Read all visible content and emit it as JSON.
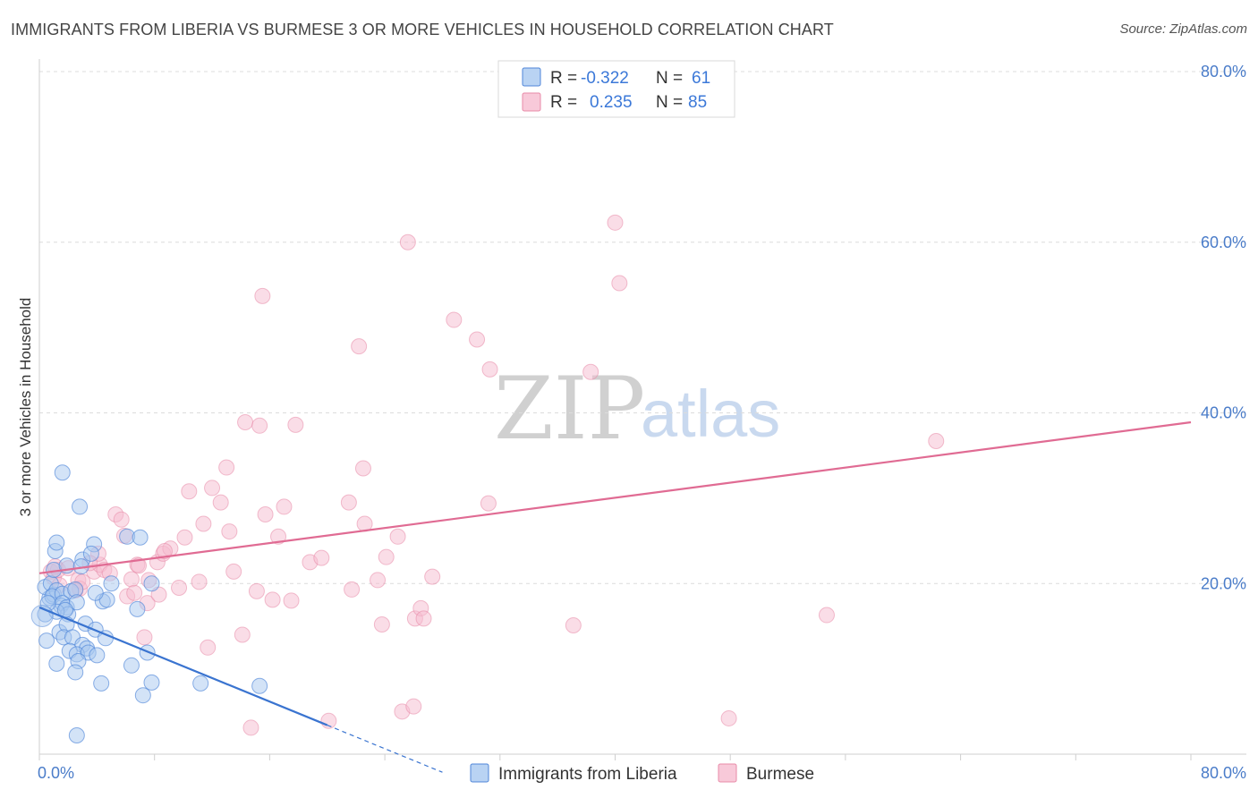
{
  "title": "IMMIGRANTS FROM LIBERIA VS BURMESE 3 OR MORE VEHICLES IN HOUSEHOLD CORRELATION CHART",
  "source": "Source: ZipAtlas.com",
  "watermark": {
    "zip": "ZIP",
    "atlas": "atlas"
  },
  "colors": {
    "liberia_fill": "#a8c8f0",
    "liberia_stroke": "#4f86d8",
    "liberia_line": "#3a74d0",
    "burmese_fill": "#f6bcd0",
    "burmese_stroke": "#e88aa8",
    "burmese_line": "#e06b93",
    "tick_text": "#4a7cc9"
  },
  "legend": {
    "r_label": "R =",
    "n_label": "N =",
    "rows": [
      {
        "r": "-0.322",
        "n": "61"
      },
      {
        "r": "0.235",
        "n": "85"
      }
    ]
  },
  "chart_data": {
    "type": "scatter",
    "title": "IMMIGRANTS FROM LIBERIA VS BURMESE 3 OR MORE VEHICLES IN HOUSEHOLD CORRELATION CHART",
    "xlabel": "",
    "ylabel": "3 or more Vehicles in Household",
    "xlim": [
      0,
      80
    ],
    "ylim": [
      0,
      80
    ],
    "x_tick_labels": [
      "0.0%",
      "80.0%"
    ],
    "y_tick_labels": [
      {
        "value": 20,
        "label": "20.0%"
      },
      {
        "value": 40,
        "label": "40.0%"
      },
      {
        "value": 60,
        "label": "60.0%"
      },
      {
        "value": 80,
        "label": "80.0%"
      }
    ],
    "grid": true,
    "series": [
      {
        "name": "Immigrants from Liberia",
        "r": -0.322,
        "n": 61,
        "trend": {
          "x0": 0,
          "y0": 17.2,
          "x1": 20,
          "y1": 3.4,
          "dash_to_x": 28
        },
        "points": [
          [
            0.4,
            16.4
          ],
          [
            0.7,
            18.3
          ],
          [
            0.4,
            19.6
          ],
          [
            1.0,
            18.7
          ],
          [
            0.8,
            20.0
          ],
          [
            1.2,
            19.2
          ],
          [
            0.9,
            18.5
          ],
          [
            1.6,
            18.8
          ],
          [
            2.2,
            19.1
          ],
          [
            2.5,
            19.3
          ],
          [
            1.0,
            21.6
          ],
          [
            1.1,
            23.8
          ],
          [
            1.2,
            24.8
          ],
          [
            1.9,
            22.1
          ],
          [
            2.8,
            29.0
          ],
          [
            3.0,
            22.8
          ],
          [
            3.8,
            24.6
          ],
          [
            3.6,
            23.5
          ],
          [
            1.5,
            17.4
          ],
          [
            1.6,
            17.7
          ],
          [
            1.9,
            17.2
          ],
          [
            2.0,
            16.4
          ],
          [
            1.2,
            16.7
          ],
          [
            0.5,
            13.3
          ],
          [
            1.4,
            14.3
          ],
          [
            1.9,
            15.2
          ],
          [
            1.7,
            13.7
          ],
          [
            2.3,
            13.7
          ],
          [
            3.2,
            15.3
          ],
          [
            3.9,
            14.6
          ],
          [
            3.0,
            12.8
          ],
          [
            3.3,
            12.4
          ],
          [
            4.6,
            13.6
          ],
          [
            2.1,
            12.1
          ],
          [
            2.6,
            11.7
          ],
          [
            3.4,
            11.9
          ],
          [
            4.0,
            11.6
          ],
          [
            2.7,
            10.9
          ],
          [
            1.2,
            10.6
          ],
          [
            2.5,
            9.6
          ],
          [
            6.4,
            10.4
          ],
          [
            7.5,
            11.9
          ],
          [
            4.3,
            8.3
          ],
          [
            7.2,
            6.9
          ],
          [
            7.8,
            8.4
          ],
          [
            11.2,
            8.3
          ],
          [
            15.3,
            8.0
          ],
          [
            6.8,
            17.0
          ],
          [
            4.4,
            17.9
          ],
          [
            4.7,
            18.1
          ],
          [
            5.0,
            20.0
          ],
          [
            7.8,
            20.0
          ],
          [
            6.1,
            25.5
          ],
          [
            7.0,
            25.4
          ],
          [
            1.6,
            33.0
          ],
          [
            2.6,
            2.2
          ],
          [
            2.9,
            22.0
          ],
          [
            2.6,
            17.8
          ],
          [
            0.6,
            17.7
          ],
          [
            3.9,
            18.9
          ],
          [
            1.8,
            16.9
          ]
        ]
      },
      {
        "name": "Burmese",
        "r": 0.235,
        "n": 85,
        "trend": {
          "x0": 0,
          "y0": 21.2,
          "x1": 80,
          "y1": 38.9
        },
        "points": [
          [
            0.8,
            21.4
          ],
          [
            1.0,
            20.7
          ],
          [
            1.3,
            21.6
          ],
          [
            1.1,
            22.0
          ],
          [
            2.0,
            21.8
          ],
          [
            2.7,
            20.4
          ],
          [
            2.8,
            19.4
          ],
          [
            3.0,
            20.2
          ],
          [
            3.8,
            21.4
          ],
          [
            4.2,
            22.2
          ],
          [
            4.5,
            21.6
          ],
          [
            4.1,
            23.5
          ],
          [
            5.3,
            28.1
          ],
          [
            5.7,
            27.5
          ],
          [
            5.9,
            25.6
          ],
          [
            6.4,
            20.5
          ],
          [
            6.1,
            18.5
          ],
          [
            6.6,
            18.9
          ],
          [
            6.8,
            22.2
          ],
          [
            6.9,
            22.1
          ],
          [
            7.5,
            17.7
          ],
          [
            7.6,
            20.4
          ],
          [
            8.3,
            18.7
          ],
          [
            8.2,
            22.5
          ],
          [
            8.6,
            23.5
          ],
          [
            9.1,
            24.1
          ],
          [
            8.7,
            23.8
          ],
          [
            9.7,
            19.5
          ],
          [
            10.1,
            25.4
          ],
          [
            10.4,
            30.8
          ],
          [
            11.1,
            20.2
          ],
          [
            11.4,
            27.0
          ],
          [
            12.0,
            31.2
          ],
          [
            12.6,
            29.5
          ],
          [
            13.0,
            33.6
          ],
          [
            13.2,
            26.1
          ],
          [
            13.5,
            21.4
          ],
          [
            14.1,
            14.0
          ],
          [
            14.3,
            38.9
          ],
          [
            15.1,
            19.1
          ],
          [
            15.3,
            38.5
          ],
          [
            15.5,
            53.7
          ],
          [
            15.7,
            28.1
          ],
          [
            16.2,
            18.1
          ],
          [
            16.6,
            25.5
          ],
          [
            17.0,
            29.0
          ],
          [
            17.5,
            18.0
          ],
          [
            17.8,
            38.6
          ],
          [
            18.8,
            22.5
          ],
          [
            19.6,
            23.0
          ],
          [
            21.5,
            29.5
          ],
          [
            21.7,
            19.3
          ],
          [
            22.2,
            47.8
          ],
          [
            22.5,
            33.5
          ],
          [
            22.6,
            27.0
          ],
          [
            23.5,
            20.4
          ],
          [
            23.8,
            15.2
          ],
          [
            24.1,
            23.1
          ],
          [
            24.9,
            25.5
          ],
          [
            25.6,
            60.0
          ],
          [
            26.1,
            15.9
          ],
          [
            26.5,
            17.1
          ],
          [
            26.7,
            15.9
          ],
          [
            27.3,
            20.8
          ],
          [
            28.8,
            50.9
          ],
          [
            30.4,
            48.6
          ],
          [
            31.2,
            29.4
          ],
          [
            31.3,
            45.1
          ],
          [
            37.1,
            15.1
          ],
          [
            38.3,
            44.8
          ],
          [
            40.0,
            62.3
          ],
          [
            40.3,
            55.2
          ],
          [
            47.9,
            4.2
          ],
          [
            54.7,
            16.3
          ],
          [
            62.3,
            36.7
          ],
          [
            25.2,
            5.0
          ],
          [
            26.0,
            5.6
          ],
          [
            14.7,
            3.1
          ],
          [
            20.1,
            3.9
          ],
          [
            1.4,
            19.8
          ],
          [
            2.5,
            19.2
          ],
          [
            3.5,
            22.4
          ],
          [
            4.9,
            21.2
          ],
          [
            7.3,
            13.7
          ],
          [
            11.7,
            12.5
          ]
        ]
      }
    ]
  }
}
